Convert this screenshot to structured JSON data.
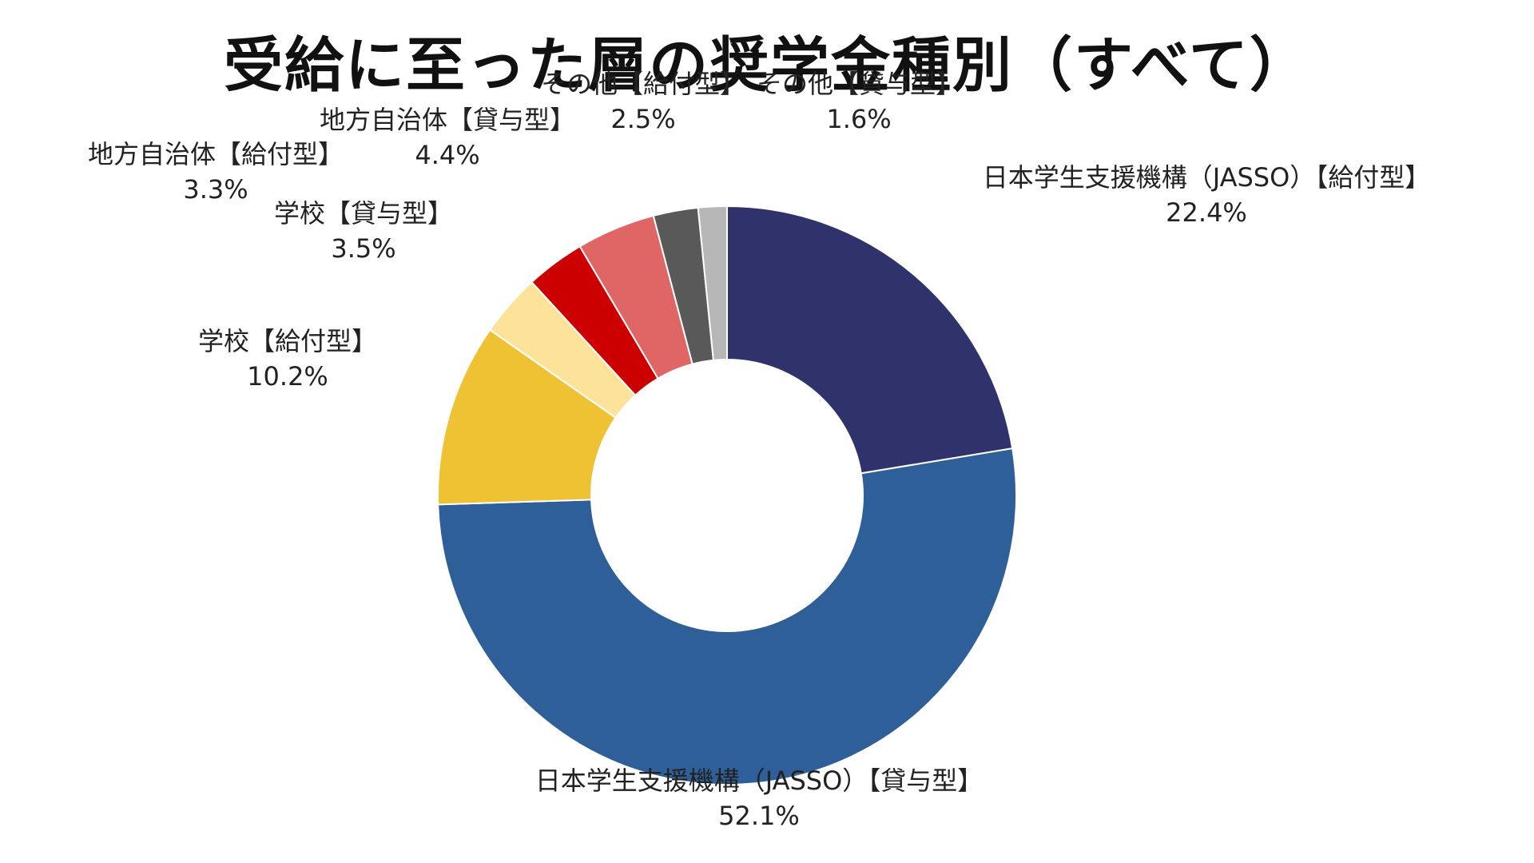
{
  "chart_data": {
    "type": "pie",
    "style": "donut",
    "title": "受給に至った層の奨学金種別（すべて）",
    "slices": [
      {
        "label": "日本学生支援機構（JASSO）【給付型】",
        "value": 22.4,
        "value_text": "22.4%",
        "color": "#30336b"
      },
      {
        "label": "日本学生支援機構（JASSO）【貸与型】",
        "value": 52.1,
        "value_text": "52.1%",
        "color": "#2f5f98"
      },
      {
        "label": "学校【給付型】",
        "value": 10.2,
        "value_text": "10.2%",
        "color": "#efc234"
      },
      {
        "label": "学校【貸与型】",
        "value": 3.5,
        "value_text": "3.5%",
        "color": "#fde29a"
      },
      {
        "label": "地方自治体【給付型】",
        "value": 3.3,
        "value_text": "3.3%",
        "color": "#cc0000"
      },
      {
        "label": "地方自治体【貸与型】",
        "value": 4.4,
        "value_text": "4.4%",
        "color": "#e06666"
      },
      {
        "label": "その他【給付型】",
        "value": 2.5,
        "value_text": "2.5%",
        "color": "#595959"
      },
      {
        "label": "その他【貸与型】",
        "value": 1.6,
        "value_text": "1.6%",
        "color": "#b7b7b7"
      }
    ],
    "start_angle": "12 o'clock",
    "direction": "clockwise"
  }
}
